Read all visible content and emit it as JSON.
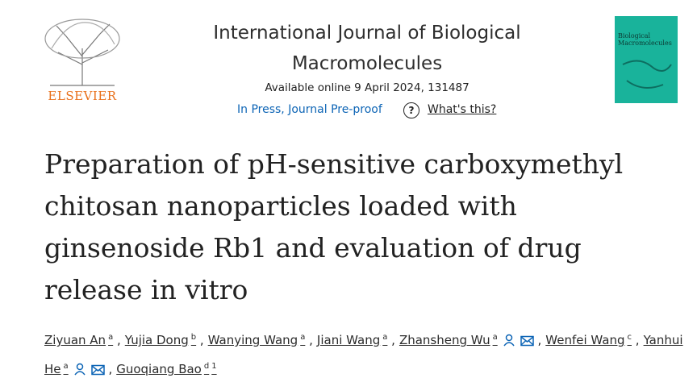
{
  "header": {
    "publisher": "ELSEVIER",
    "journal": "International Journal of Biological Macromolecules",
    "availability": "Available online 9 April 2024, 131487",
    "status": "In Press, Journal Pre-proof",
    "help_icon": "?",
    "help_link": "What's this?",
    "cover_title": "Biological Macromolecules"
  },
  "article": {
    "title": "Preparation of pH-sensitive carboxymethyl chitosan nanoparticles loaded with ginsenoside Rb1 and evaluation of drug release in vitro",
    "separator": ",",
    "authors": [
      {
        "name": "Ziyuan An",
        "affiliations": [
          "a"
        ]
      },
      {
        "name": "Yujia Dong",
        "affiliations": [
          "b"
        ]
      },
      {
        "name": "Wanying Wang",
        "affiliations": [
          "a"
        ]
      },
      {
        "name": "Jiani Wang",
        "affiliations": [
          "a"
        ]
      },
      {
        "name": "Zhansheng Wu",
        "affiliations": [
          "a"
        ],
        "corresponding": true
      },
      {
        "name": "Wenfei Wang",
        "affiliations": [
          "c"
        ]
      },
      {
        "name": "Yanhui He",
        "affiliations": [
          "a"
        ],
        "corresponding": true
      },
      {
        "name": "Guoqiang Bao",
        "affiliations": [
          "d",
          "1"
        ]
      }
    ]
  }
}
